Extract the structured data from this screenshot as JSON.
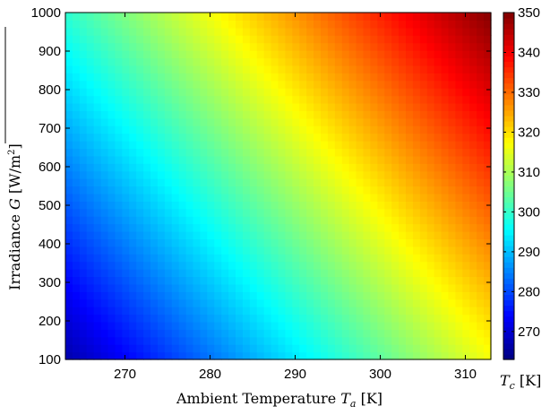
{
  "chart_data": {
    "type": "heatmap",
    "title": "",
    "xlabel": {
      "prefix": "Ambient Temperature ",
      "symbol": "T",
      "sub": "a",
      "unit": " [K]"
    },
    "ylabel": {
      "prefix": "Irradiance ",
      "symbol": "G",
      "unit": " [W/m",
      "sup": "2",
      "unit_end": "]"
    },
    "colorbar_label": {
      "symbol": "T",
      "sub": "c",
      "unit": " [K]"
    },
    "x_range": [
      263,
      313
    ],
    "y_range": [
      100,
      1000
    ],
    "x_ticks": [
      270,
      280,
      290,
      300,
      310
    ],
    "y_ticks": [
      100,
      200,
      300,
      400,
      500,
      600,
      700,
      800,
      900,
      1000
    ],
    "colorbar_range": [
      263,
      350
    ],
    "colorbar_ticks": [
      270,
      280,
      290,
      300,
      310,
      320,
      330,
      340,
      350
    ],
    "colormap": "jet",
    "model": "Tc = Ta + 0.0365 * G",
    "grid": false
  }
}
